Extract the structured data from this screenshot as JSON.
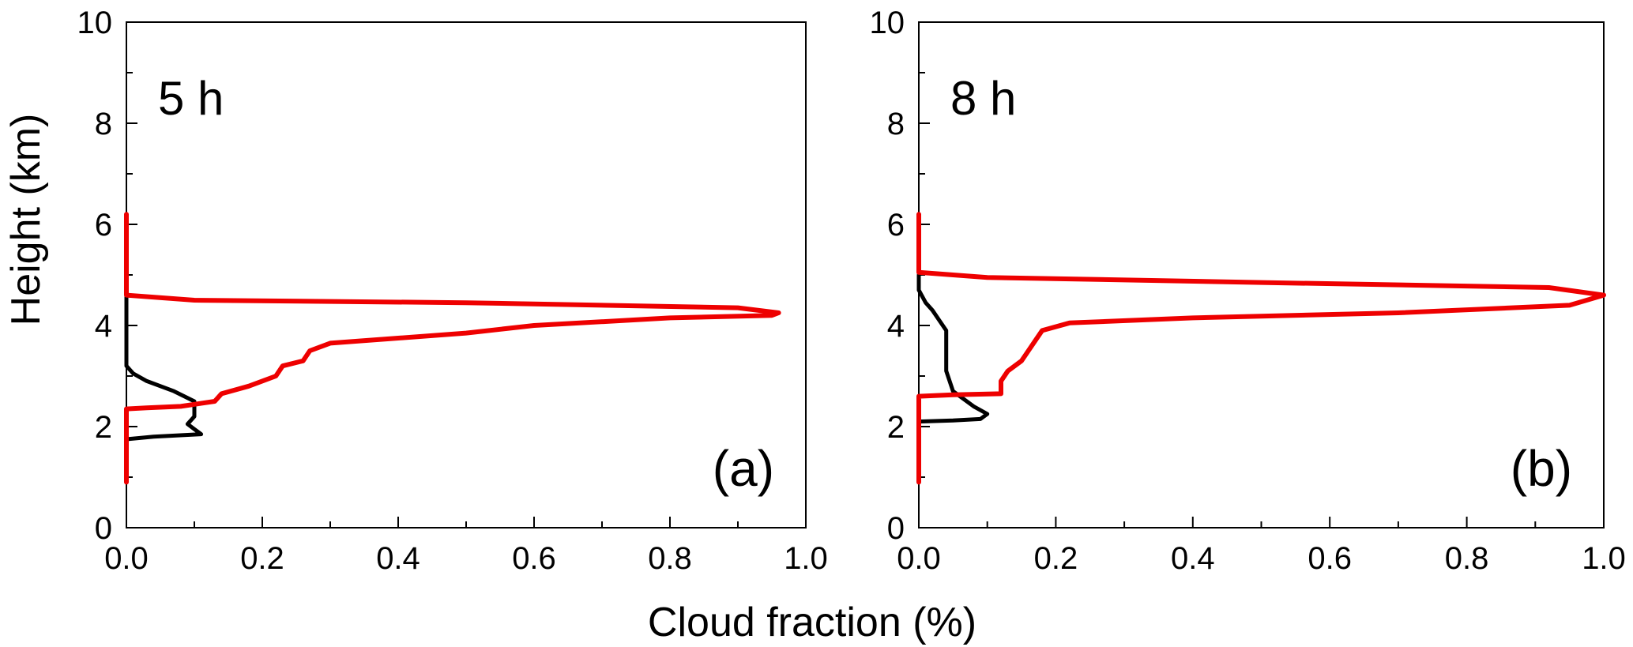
{
  "figure": {
    "ylabel": "Height (km)",
    "xlabel": "Cloud fraction (%)"
  },
  "chart_data": [
    {
      "type": "line",
      "time_label": "5 h",
      "panel_label": "(a)",
      "xlim": [
        0,
        1.0
      ],
      "ylim": [
        0,
        10
      ],
      "x_ticks": [
        "0.0",
        "0.2",
        "0.4",
        "0.6",
        "0.8",
        "1.0"
      ],
      "y_ticks": [
        "0",
        "2",
        "4",
        "6",
        "8",
        "10"
      ],
      "series": [
        {
          "color": "#000000",
          "points": [
            [
              0,
              4.6
            ],
            [
              0,
              3.2
            ],
            [
              0.01,
              3.05
            ],
            [
              0.03,
              2.9
            ],
            [
              0.07,
              2.7
            ],
            [
              0.1,
              2.5
            ],
            [
              0.1,
              2.2
            ],
            [
              0.09,
              2.05
            ],
            [
              0.1,
              1.95
            ],
            [
              0.11,
              1.85
            ],
            [
              0.04,
              1.8
            ],
            [
              0,
              1.75
            ],
            [
              0,
              1.5
            ]
          ]
        },
        {
          "color": "#ee0000",
          "points": [
            [
              0,
              0.9
            ],
            [
              0,
              2.35
            ],
            [
              0.03,
              2.37
            ],
            [
              0.08,
              2.4
            ],
            [
              0.13,
              2.5
            ],
            [
              0.14,
              2.65
            ],
            [
              0.18,
              2.8
            ],
            [
              0.22,
              3.0
            ],
            [
              0.23,
              3.2
            ],
            [
              0.26,
              3.3
            ],
            [
              0.27,
              3.5
            ],
            [
              0.3,
              3.65
            ],
            [
              0.4,
              3.75
            ],
            [
              0.5,
              3.85
            ],
            [
              0.6,
              4.0
            ],
            [
              0.8,
              4.15
            ],
            [
              0.95,
              4.2
            ],
            [
              0.96,
              4.25
            ],
            [
              0.9,
              4.35
            ],
            [
              0.5,
              4.45
            ],
            [
              0.1,
              4.5
            ],
            [
              0,
              4.6
            ],
            [
              0,
              6.2
            ]
          ]
        }
      ]
    },
    {
      "type": "line",
      "time_label": "8 h",
      "panel_label": "(b)",
      "xlim": [
        0,
        1.0
      ],
      "ylim": [
        0,
        10
      ],
      "x_ticks": [
        "0.0",
        "0.2",
        "0.4",
        "0.6",
        "0.8",
        "1.0"
      ],
      "y_ticks": [
        "0",
        "2",
        "4",
        "6",
        "8",
        "10"
      ],
      "series": [
        {
          "color": "#000000",
          "points": [
            [
              0,
              5.0
            ],
            [
              0,
              4.7
            ],
            [
              0.01,
              4.45
            ],
            [
              0.02,
              4.3
            ],
            [
              0.03,
              4.1
            ],
            [
              0.04,
              3.9
            ],
            [
              0.04,
              3.5
            ],
            [
              0.04,
              3.1
            ],
            [
              0.05,
              2.7
            ],
            [
              0.08,
              2.4
            ],
            [
              0.1,
              2.25
            ],
            [
              0.09,
              2.15
            ],
            [
              0.05,
              2.12
            ],
            [
              0,
              2.1
            ],
            [
              0,
              2.0
            ]
          ]
        },
        {
          "color": "#ee0000",
          "points": [
            [
              0,
              0.9
            ],
            [
              0,
              2.6
            ],
            [
              0.05,
              2.63
            ],
            [
              0.12,
              2.65
            ],
            [
              0.12,
              2.9
            ],
            [
              0.13,
              3.1
            ],
            [
              0.15,
              3.3
            ],
            [
              0.16,
              3.5
            ],
            [
              0.17,
              3.7
            ],
            [
              0.18,
              3.9
            ],
            [
              0.22,
              4.05
            ],
            [
              0.4,
              4.15
            ],
            [
              0.7,
              4.25
            ],
            [
              0.95,
              4.4
            ],
            [
              1.0,
              4.6
            ],
            [
              0.92,
              4.75
            ],
            [
              0.5,
              4.85
            ],
            [
              0.1,
              4.95
            ],
            [
              0,
              5.05
            ],
            [
              0,
              6.2
            ]
          ]
        }
      ]
    }
  ]
}
